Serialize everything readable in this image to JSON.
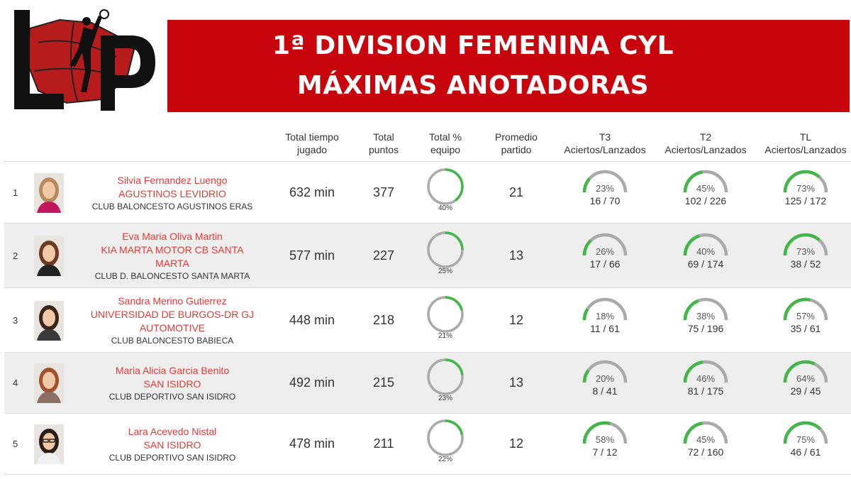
{
  "banner": {
    "line1": "1ª DIVISION FEMENINA CYL",
    "line2": "MÁXIMAS ANOTADORAS"
  },
  "logo": {
    "text": "LP",
    "icon": "basketball-player-logo"
  },
  "colors": {
    "accent": "#c8040c",
    "red_text": "#e53935",
    "green": "#43b649",
    "grey": "#aaaaaa"
  },
  "headers": {
    "time": [
      "Total tiempo",
      "jugado"
    ],
    "points": [
      "Total",
      "puntos"
    ],
    "team_pct": [
      "Total %",
      "equipo"
    ],
    "avg": [
      "Promedio",
      "partido"
    ],
    "t3": [
      "T3",
      "Aciertos/Lanzados"
    ],
    "t2": [
      "T2",
      "Aciertos/Lanzados"
    ],
    "tl": [
      "TL",
      "Aciertos/Lanzados"
    ]
  },
  "players": [
    {
      "rank": "1",
      "name": "Silvia Fernandez Luengo",
      "team": [
        "AGUSTINOS LEVIDRIO"
      ],
      "club": "CLUB BALONCESTO AGUSTINOS ERAS",
      "time": "632 min",
      "points": "377",
      "team_pct": 40,
      "team_pct_label": "40%",
      "avg": "21",
      "t3": {
        "pct": 23,
        "pct_label": "23%",
        "count": "16 / 70"
      },
      "t2": {
        "pct": 45,
        "pct_label": "45%",
        "count": "102 / 226"
      },
      "tl": {
        "pct": 73,
        "pct_label": "73%",
        "count": "125 / 172"
      }
    },
    {
      "rank": "2",
      "name": "Eva Maria Oliva Martin",
      "team": [
        "KIA MARTA MOTOR CB SANTA",
        "MARTA"
      ],
      "club": "CLUB D. BALONCESTO SANTA MARTA",
      "time": "577 min",
      "points": "227",
      "team_pct": 25,
      "team_pct_label": "25%",
      "avg": "13",
      "t3": {
        "pct": 26,
        "pct_label": "26%",
        "count": "17 / 66"
      },
      "t2": {
        "pct": 40,
        "pct_label": "40%",
        "count": "69 / 174"
      },
      "tl": {
        "pct": 73,
        "pct_label": "73%",
        "count": "38 / 52"
      }
    },
    {
      "rank": "3",
      "name": "Sandra Merino Gutierrez",
      "team": [
        "UNIVERSIDAD DE BURGOS-DR GJ",
        "AUTOMOTIVE"
      ],
      "club": "CLUB BALONCESTO BABIECA",
      "time": "448 min",
      "points": "218",
      "team_pct": 21,
      "team_pct_label": "21%",
      "avg": "12",
      "t3": {
        "pct": 18,
        "pct_label": "18%",
        "count": "11 / 61"
      },
      "t2": {
        "pct": 38,
        "pct_label": "38%",
        "count": "75 / 196"
      },
      "tl": {
        "pct": 57,
        "pct_label": "57%",
        "count": "35 / 61"
      }
    },
    {
      "rank": "4",
      "name": "Maria Alicia Garcia Benito",
      "team": [
        "SAN ISIDRO"
      ],
      "club": "CLUB DEPORTIVO SAN ISIDRO",
      "time": "492 min",
      "points": "215",
      "team_pct": 23,
      "team_pct_label": "23%",
      "avg": "13",
      "t3": {
        "pct": 20,
        "pct_label": "20%",
        "count": "8 / 41"
      },
      "t2": {
        "pct": 46,
        "pct_label": "46%",
        "count": "81 / 175"
      },
      "tl": {
        "pct": 64,
        "pct_label": "64%",
        "count": "29 / 45"
      }
    },
    {
      "rank": "5",
      "name": "Lara Acevedo Nistal",
      "team": [
        "SAN ISIDRO"
      ],
      "club": "CLUB DEPORTIVO SAN ISIDRO",
      "time": "478 min",
      "points": "211",
      "team_pct": 22,
      "team_pct_label": "22%",
      "avg": "12",
      "t3": {
        "pct": 58,
        "pct_label": "58%",
        "count": "7 / 12"
      },
      "t2": {
        "pct": 45,
        "pct_label": "45%",
        "count": "72 / 160"
      },
      "tl": {
        "pct": 75,
        "pct_label": "75%",
        "count": "46 / 61"
      }
    }
  ]
}
